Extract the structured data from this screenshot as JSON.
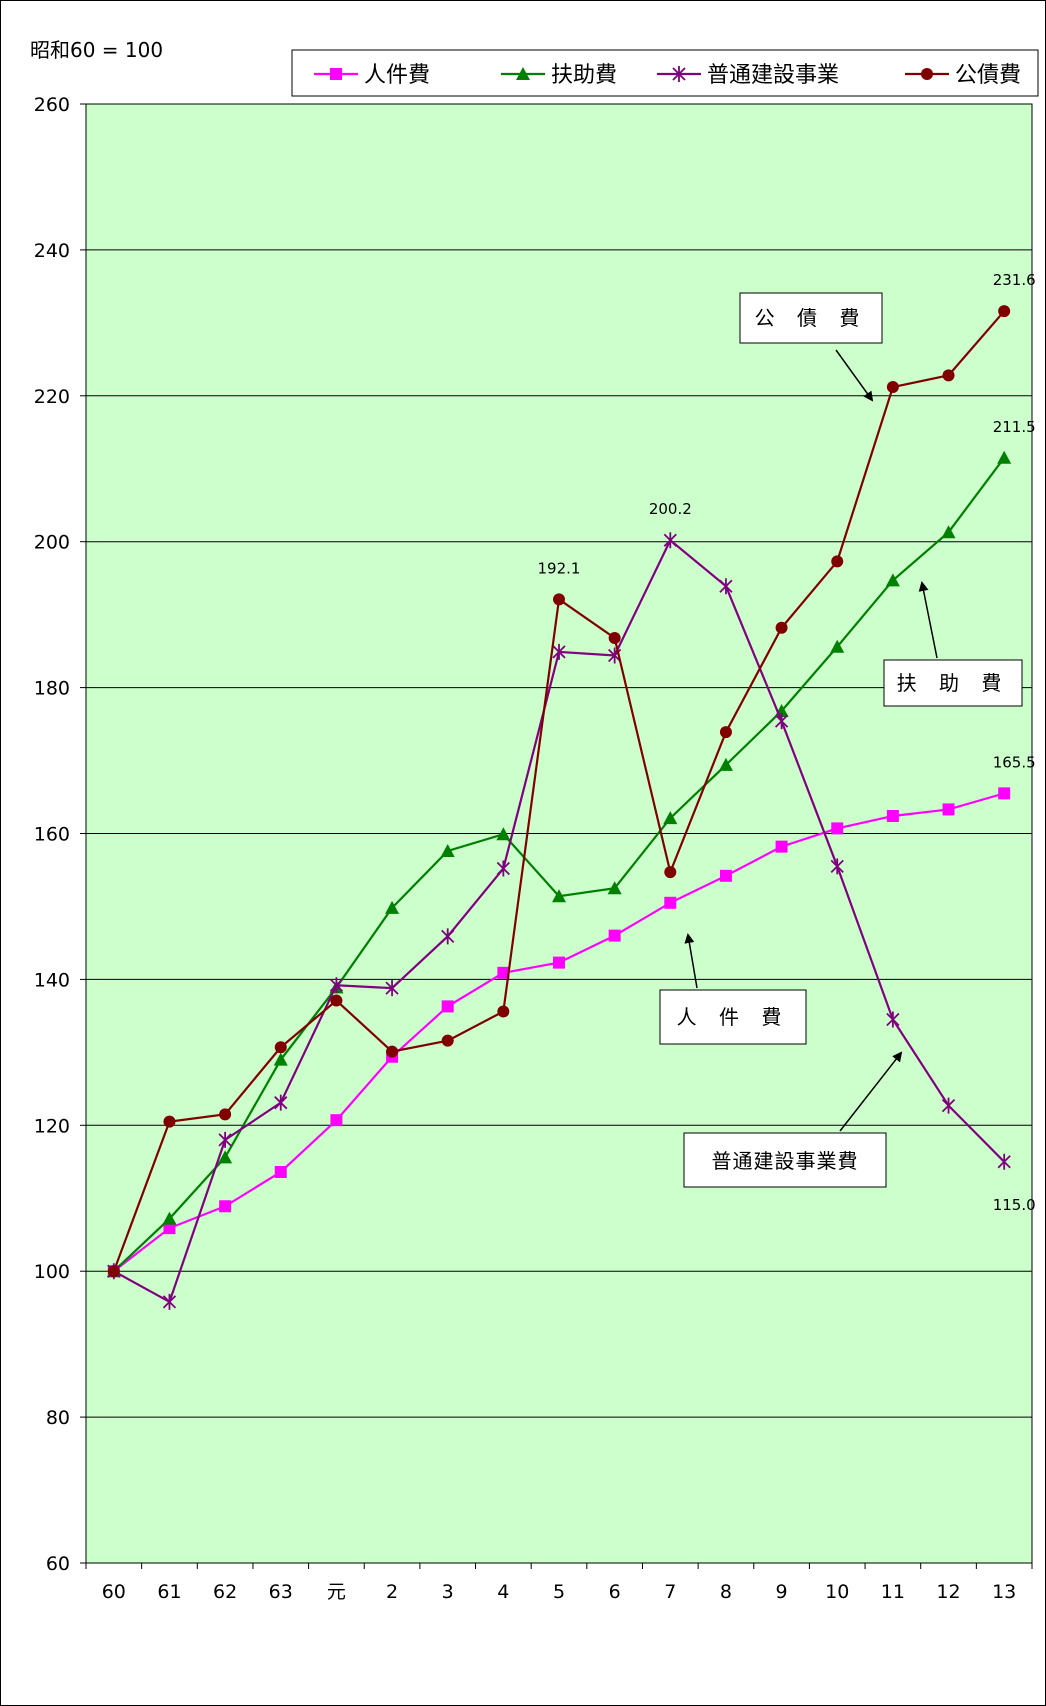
{
  "chart_data": {
    "type": "line",
    "unit_note": "昭和60 = 100",
    "categories": [
      "60",
      "61",
      "62",
      "63",
      "元",
      "2",
      "3",
      "4",
      "5",
      "6",
      "7",
      "8",
      "9",
      "10",
      "11",
      "12",
      "13"
    ],
    "ylim": [
      60,
      260
    ],
    "yticks": [
      60,
      80,
      100,
      120,
      140,
      160,
      180,
      200,
      220,
      240,
      260
    ],
    "grid": true,
    "legend_position": "top-right",
    "series": [
      {
        "name": "人件費",
        "color": "#ff00ff",
        "marker": "square",
        "values": [
          100,
          105.9,
          108.9,
          113.6,
          120.7,
          129.4,
          136.3,
          140.9,
          142.3,
          146.0,
          150.5,
          154.2,
          158.2,
          160.7,
          162.4,
          163.3,
          165.5
        ]
      },
      {
        "name": "扶助費",
        "color": "#008000",
        "marker": "triangle",
        "values": [
          100,
          107.2,
          115.6,
          129.0,
          138.9,
          149.8,
          157.6,
          159.9,
          151.4,
          152.5,
          162.1,
          169.4,
          176.8,
          185.6,
          194.7,
          201.3,
          211.5
        ]
      },
      {
        "name": "普通建設事業",
        "color": "#800080",
        "marker": "star",
        "values": [
          100,
          95.8,
          118.0,
          123.1,
          139.2,
          138.8,
          145.9,
          155.2,
          184.9,
          184.4,
          200.2,
          193.9,
          175.4,
          155.5,
          134.5,
          122.7,
          115.0
        ]
      },
      {
        "name": "公債費",
        "color": "#800000",
        "marker": "circle",
        "values": [
          100,
          120.5,
          121.5,
          130.7,
          137.1,
          130.1,
          131.6,
          135.6,
          192.1,
          186.8,
          154.7,
          173.9,
          188.2,
          197.3,
          221.2,
          222.8,
          231.6
        ]
      }
    ],
    "data_labels": [
      {
        "series": "公債費",
        "category": "13",
        "text": "231.6"
      },
      {
        "series": "扶助費",
        "category": "13",
        "text": "211.5"
      },
      {
        "series": "人件費",
        "category": "13",
        "text": "165.5"
      },
      {
        "series": "普通建設事業",
        "category": "13",
        "text": "115.0"
      },
      {
        "series": "公債費",
        "category": "5",
        "text": "192.1"
      },
      {
        "series": "普通建設事業",
        "category": "7",
        "text": "200.2"
      }
    ],
    "annotations": [
      {
        "text": "公 債 費",
        "points_to": "公債費"
      },
      {
        "text": "扶 助 費",
        "points_to": "扶助費"
      },
      {
        "text": "人 件 費",
        "points_to": "人件費"
      },
      {
        "text": "普通建設事業費",
        "points_to": "普通建設事業"
      }
    ]
  }
}
